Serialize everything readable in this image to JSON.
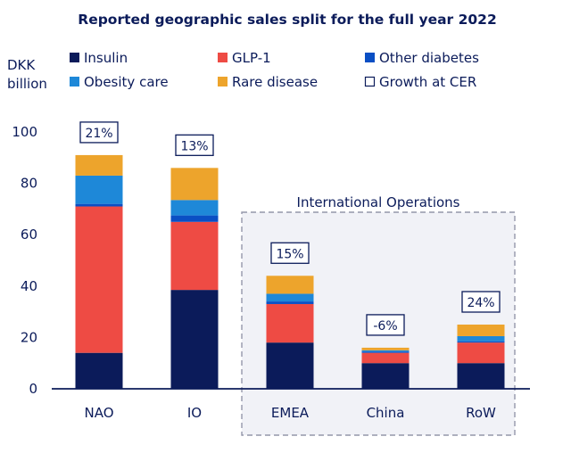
{
  "chart_data": {
    "type": "bar",
    "stacked": true,
    "title": "Reported geographic sales split for the full year 2022",
    "ylabel": "DKK billion",
    "xlabel": "",
    "ylim": [
      0,
      100
    ],
    "yticks": [
      0,
      20,
      40,
      60,
      80,
      100
    ],
    "grid": false,
    "legend_position": "top",
    "categories": [
      "NAO",
      "IO",
      "EMEA",
      "China",
      "RoW"
    ],
    "series": [
      {
        "name": "Insulin",
        "color": "#0b1b5a",
        "values": [
          14,
          38.5,
          18,
          10,
          10
        ]
      },
      {
        "name": "GLP-1",
        "color": "#ee4b44",
        "values": [
          57,
          26.5,
          15,
          4,
          8
        ]
      },
      {
        "name": "Other diabetes",
        "color": "#0a4fc4",
        "values": [
          1,
          2.5,
          1,
          0.5,
          0.5
        ]
      },
      {
        "name": "Obesity care",
        "color": "#1e88d8",
        "values": [
          11,
          6,
          3,
          0.5,
          2
        ]
      },
      {
        "name": "Rare disease",
        "color": "#eda42c",
        "values": [
          8,
          12.5,
          7,
          1,
          4.5
        ]
      }
    ],
    "growth_legend": "Growth at CER",
    "growth": [
      "21%",
      "13%",
      "15%",
      "-6%",
      "24%"
    ],
    "group_annotation": {
      "label": "International Operations",
      "categories": [
        "EMEA",
        "China",
        "RoW"
      ]
    }
  }
}
